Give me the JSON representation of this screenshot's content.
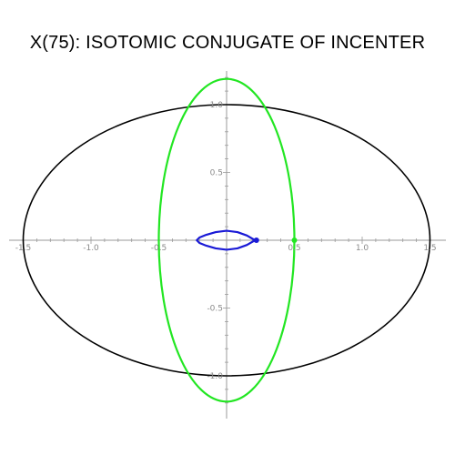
{
  "chart_data": {
    "type": "line",
    "title": "X(75): ISOTOMIC CONJUGATE OF INCENTER",
    "xlabel": "",
    "ylabel": "",
    "xlim": [
      -1.55,
      1.55
    ],
    "ylim": [
      -1.35,
      1.35
    ],
    "grid": false,
    "x_ticks": [
      {
        "value": -1.5,
        "label": "-1.5"
      },
      {
        "value": -1.0,
        "label": "-1.0"
      },
      {
        "value": -0.5,
        "label": "-0.5"
      },
      {
        "value": 0.5,
        "label": "0.5"
      },
      {
        "value": 1.0,
        "label": "1.0"
      },
      {
        "value": 1.5,
        "label": "1.5"
      }
    ],
    "y_ticks": [
      {
        "value": 1.0,
        "label": "1.0"
      },
      {
        "value": 0.5,
        "label": "0.5"
      },
      {
        "value": -0.5,
        "label": "-0.5"
      },
      {
        "value": -1.0,
        "label": "-1.0"
      }
    ],
    "series": [
      {
        "kind": "ellipse",
        "cx": 0,
        "cy": 0,
        "rx": 1.5,
        "ry": 1.0,
        "color": "#000000"
      },
      {
        "kind": "ellipse",
        "cx": 0,
        "cy": 0,
        "rx": 0.5,
        "ry": 1.19,
        "color": "#22e622"
      },
      {
        "kind": "loop",
        "color": "#1a1ad6",
        "points": [
          [
            0.21,
            0.0
          ],
          [
            0.15,
            0.035
          ],
          [
            0.08,
            0.06
          ],
          [
            0.0,
            0.07
          ],
          [
            -0.08,
            0.06
          ],
          [
            -0.15,
            0.04
          ],
          [
            -0.2,
            0.02
          ],
          [
            -0.22,
            0.0
          ],
          [
            -0.2,
            -0.02
          ],
          [
            -0.15,
            -0.04
          ],
          [
            -0.08,
            -0.06
          ],
          [
            0.0,
            -0.07
          ],
          [
            0.08,
            -0.06
          ],
          [
            0.15,
            -0.035
          ],
          [
            0.21,
            0.0
          ]
        ]
      }
    ],
    "points": [
      {
        "x": 0.5,
        "y": 0.0,
        "color": "#22e622"
      },
      {
        "x": 0.22,
        "y": 0.0,
        "color": "#1a1ad6"
      }
    ]
  }
}
